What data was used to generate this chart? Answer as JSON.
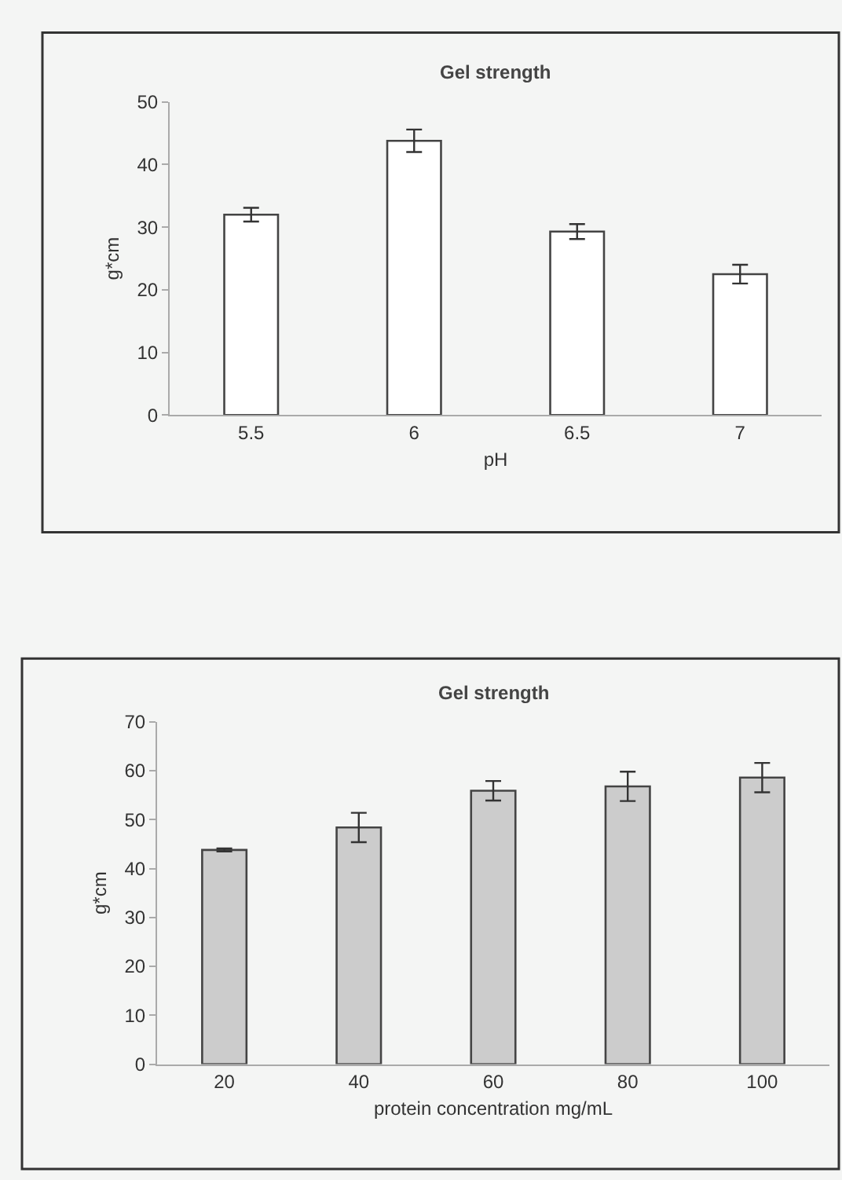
{
  "chart_data": [
    {
      "type": "bar",
      "title": "Gel strength",
      "xlabel": "pH",
      "ylabel": "g*cm",
      "categories": [
        "5.5",
        "6",
        "6.5",
        "7"
      ],
      "values": [
        32.0,
        43.8,
        29.3,
        22.5
      ],
      "errors": [
        1.1,
        1.8,
        1.2,
        1.5
      ],
      "color": "#ffffff",
      "ylim": [
        0,
        50
      ],
      "yticks": [
        0,
        10,
        20,
        30,
        40,
        50
      ]
    },
    {
      "type": "bar",
      "title": "Gel strength",
      "xlabel": "protein concentration mg/mL",
      "ylabel": "g*cm",
      "categories": [
        "20",
        "40",
        "60",
        "80",
        "100"
      ],
      "values": [
        43.8,
        48.4,
        55.9,
        56.8,
        58.6
      ],
      "errors": [
        0.3,
        3,
        2,
        3,
        3
      ],
      "color": "#cccccc",
      "ylim": [
        0,
        70
      ],
      "yticks": [
        0,
        10,
        20,
        30,
        40,
        50,
        60,
        70
      ]
    }
  ]
}
